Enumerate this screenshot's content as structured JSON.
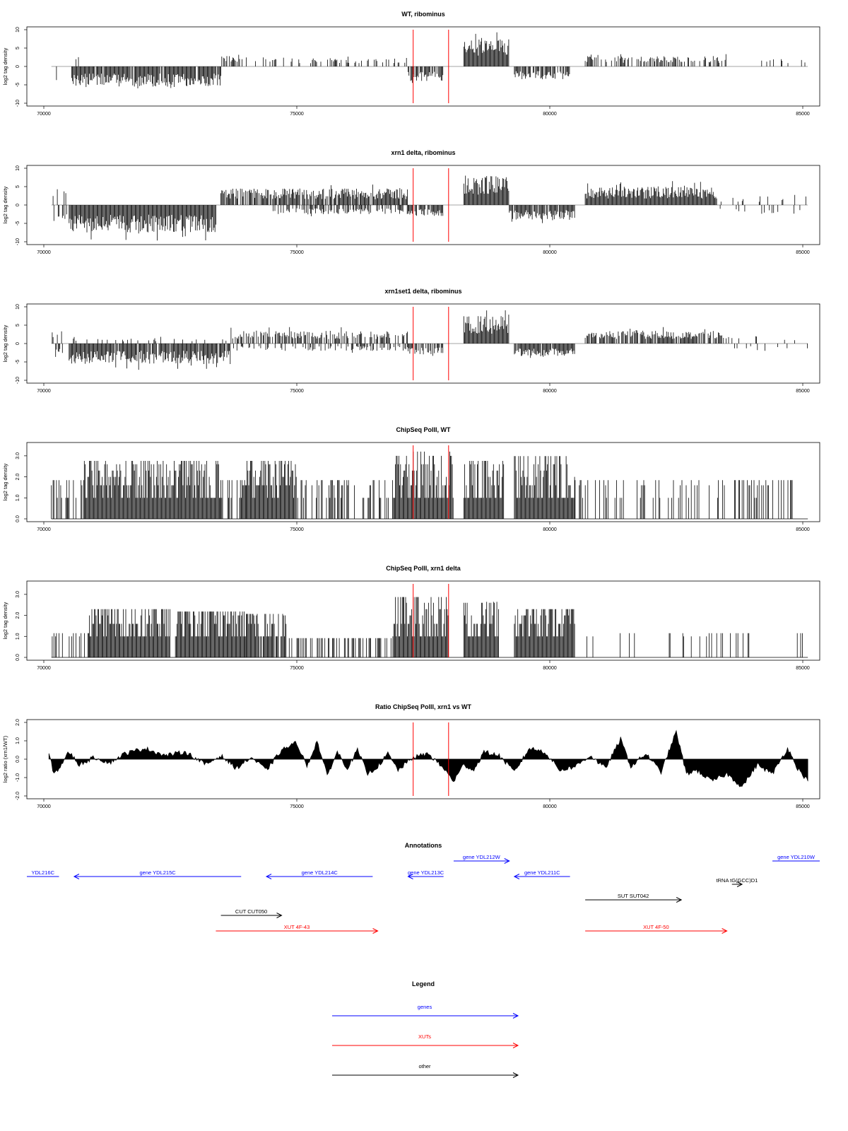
{
  "chart_data": [
    {
      "type": "bar",
      "title": "WT, ribominus",
      "xlabel": "",
      "ylabel": "log2 tag density",
      "xlim": [
        70000,
        85000
      ],
      "ylim": [
        -10,
        10
      ],
      "xticks": [
        70000,
        75000,
        80000,
        85000
      ],
      "yticks": [
        -10,
        -5,
        0,
        5,
        10
      ],
      "markers": [
        77300,
        78000
      ],
      "segments": [
        {
          "start": 70150,
          "end": 70280,
          "strand": "minus",
          "amp": 4,
          "density": 0.3
        },
        {
          "start": 70550,
          "end": 73500,
          "strand": "minus",
          "amp": 5.5,
          "density": 0.95
        },
        {
          "start": 70600,
          "end": 70700,
          "strand": "plus",
          "amp": 3.5,
          "density": 0.2
        },
        {
          "start": 73500,
          "end": 73900,
          "strand": "plus",
          "amp": 3,
          "density": 0.7
        },
        {
          "start": 73900,
          "end": 77200,
          "strand": "plus",
          "amp": 2.5,
          "density": 0.25
        },
        {
          "start": 77200,
          "end": 77900,
          "strand": "minus",
          "amp": 4,
          "density": 0.8
        },
        {
          "start": 78300,
          "end": 79200,
          "strand": "plus",
          "amp": 7.5,
          "density": 1
        },
        {
          "start": 79300,
          "end": 80400,
          "strand": "minus",
          "amp": 3.5,
          "density": 0.8
        },
        {
          "start": 80700,
          "end": 83500,
          "strand": "plus",
          "amp": 2.8,
          "density": 0.5
        },
        {
          "start": 83500,
          "end": 85100,
          "strand": "plus",
          "amp": 2,
          "density": 0.08
        }
      ]
    },
    {
      "type": "bar",
      "title": "xrn1 delta, ribominus",
      "xlabel": "",
      "ylabel": "log2 tag density",
      "xlim": [
        70000,
        85000
      ],
      "ylim": [
        -10,
        10
      ],
      "xticks": [
        70000,
        75000,
        80000,
        85000
      ],
      "yticks": [
        -10,
        -5,
        0,
        5,
        10
      ],
      "markers": [
        77300,
        78000
      ],
      "segments": [
        {
          "start": 70150,
          "end": 70500,
          "strand": "both",
          "amp": 4.5,
          "density": 0.6
        },
        {
          "start": 70500,
          "end": 73400,
          "strand": "minus",
          "amp": 7.5,
          "density": 1
        },
        {
          "start": 73500,
          "end": 77200,
          "strand": "plus",
          "amp": 4.5,
          "density": 0.9
        },
        {
          "start": 74500,
          "end": 77200,
          "strand": "minus",
          "amp": 2.5,
          "density": 0.5
        },
        {
          "start": 77200,
          "end": 77900,
          "strand": "minus",
          "amp": 3,
          "density": 0.8
        },
        {
          "start": 78300,
          "end": 79200,
          "strand": "plus",
          "amp": 8,
          "density": 1
        },
        {
          "start": 79200,
          "end": 80500,
          "strand": "minus",
          "amp": 4,
          "density": 0.9
        },
        {
          "start": 80700,
          "end": 83300,
          "strand": "plus",
          "amp": 5,
          "density": 1
        },
        {
          "start": 83300,
          "end": 85100,
          "strand": "both",
          "amp": 2.5,
          "density": 0.2
        }
      ]
    },
    {
      "type": "bar",
      "title": "xrn1set1 delta, ribominus",
      "xlabel": "",
      "ylabel": "log2 tag density",
      "xlim": [
        70000,
        85000
      ],
      "ylim": [
        -10,
        10
      ],
      "xticks": [
        70000,
        75000,
        80000,
        85000
      ],
      "yticks": [
        -10,
        -5,
        0,
        5,
        10
      ],
      "markers": [
        77300,
        78000
      ],
      "segments": [
        {
          "start": 70150,
          "end": 70400,
          "strand": "both",
          "amp": 4,
          "density": 0.5
        },
        {
          "start": 70500,
          "end": 73700,
          "strand": "minus",
          "amp": 5.5,
          "density": 0.95
        },
        {
          "start": 70500,
          "end": 73700,
          "strand": "plus",
          "amp": 1.5,
          "density": 0.15
        },
        {
          "start": 73700,
          "end": 77200,
          "strand": "plus",
          "amp": 3.5,
          "density": 0.5
        },
        {
          "start": 73700,
          "end": 77200,
          "strand": "minus",
          "amp": 2,
          "density": 0.3
        },
        {
          "start": 77200,
          "end": 77900,
          "strand": "minus",
          "amp": 3,
          "density": 0.8
        },
        {
          "start": 78300,
          "end": 79200,
          "strand": "plus",
          "amp": 7.5,
          "density": 1
        },
        {
          "start": 79300,
          "end": 80500,
          "strand": "minus",
          "amp": 3.5,
          "density": 0.9
        },
        {
          "start": 80700,
          "end": 83400,
          "strand": "plus",
          "amp": 3.5,
          "density": 0.8
        },
        {
          "start": 83400,
          "end": 85100,
          "strand": "both",
          "amp": 2,
          "density": 0.15
        }
      ]
    },
    {
      "type": "bar",
      "title": "ChipSeq PolII, WT",
      "xlabel": "",
      "ylabel": "log2 tag density",
      "xlim": [
        70000,
        85000
      ],
      "ylim": [
        0,
        3.5
      ],
      "xticks": [
        70000,
        75000,
        80000,
        85000
      ],
      "yticks": [
        0.0,
        1.0,
        2.0,
        3.0
      ],
      "markers": [
        77300,
        78000
      ],
      "segments": [
        {
          "start": 70150,
          "end": 70800,
          "strand": "plus",
          "amp": 1.6,
          "density": 0.5
        },
        {
          "start": 70800,
          "end": 72700,
          "strand": "plus",
          "amp": 2.4,
          "density": 1
        },
        {
          "start": 72700,
          "end": 73500,
          "strand": "plus",
          "amp": 2.4,
          "density": 1
        },
        {
          "start": 73500,
          "end": 74000,
          "strand": "plus",
          "amp": 1.6,
          "density": 0.6
        },
        {
          "start": 74000,
          "end": 75000,
          "strand": "plus",
          "amp": 2.4,
          "density": 1
        },
        {
          "start": 75000,
          "end": 76900,
          "strand": "plus",
          "amp": 1.6,
          "density": 0.4
        },
        {
          "start": 76900,
          "end": 78100,
          "strand": "plus",
          "amp": 2.8,
          "density": 1
        },
        {
          "start": 78300,
          "end": 79100,
          "strand": "plus",
          "amp": 2.4,
          "density": 1
        },
        {
          "start": 79300,
          "end": 80500,
          "strand": "plus",
          "amp": 2.6,
          "density": 1
        },
        {
          "start": 80500,
          "end": 85100,
          "strand": "plus",
          "amp": 1.6,
          "density": 0.25
        }
      ]
    },
    {
      "type": "bar",
      "title": "ChipSeq PolII, xrn1 delta",
      "xlabel": "",
      "ylabel": "log2 tag density",
      "xlim": [
        70000,
        85000
      ],
      "ylim": [
        0,
        3.5
      ],
      "xticks": [
        70000,
        75000,
        80000,
        85000
      ],
      "yticks": [
        0.0,
        1.0,
        2.0,
        3.0
      ],
      "markers": [
        77300,
        78000
      ],
      "segments": [
        {
          "start": 70150,
          "end": 70900,
          "strand": "plus",
          "amp": 1,
          "density": 0.4
        },
        {
          "start": 70900,
          "end": 72500,
          "strand": "plus",
          "amp": 2,
          "density": 1
        },
        {
          "start": 72600,
          "end": 74000,
          "strand": "plus",
          "amp": 1.9,
          "density": 1
        },
        {
          "start": 74000,
          "end": 74800,
          "strand": "plus",
          "amp": 1.8,
          "density": 0.9
        },
        {
          "start": 74800,
          "end": 76900,
          "strand": "plus",
          "amp": 0.8,
          "density": 0.35
        },
        {
          "start": 76900,
          "end": 78000,
          "strand": "plus",
          "amp": 2.5,
          "density": 1
        },
        {
          "start": 78300,
          "end": 79000,
          "strand": "plus",
          "amp": 2.3,
          "density": 1
        },
        {
          "start": 79300,
          "end": 80500,
          "strand": "plus",
          "amp": 2,
          "density": 1
        },
        {
          "start": 80500,
          "end": 85100,
          "strand": "plus",
          "amp": 1,
          "density": 0.15
        }
      ]
    },
    {
      "type": "area",
      "title": "Ratio ChipSeq PolII, xrn1 vs WT",
      "xlabel": "",
      "ylabel": "log2 ratio (xrn1/WT)",
      "xlim": [
        70000,
        85000
      ],
      "ylim": [
        -2,
        2
      ],
      "xticks": [
        70000,
        75000,
        80000,
        85000
      ],
      "yticks": [
        -2,
        -1,
        0,
        1,
        2
      ],
      "markers": [
        77300,
        78000
      ],
      "x": [
        70100,
        70200,
        70300,
        70500,
        70700,
        71000,
        71300,
        71600,
        72000,
        72400,
        72800,
        73200,
        73500,
        73800,
        74100,
        74400,
        74700,
        75000,
        75200,
        75400,
        75600,
        75800,
        76000,
        76200,
        76400,
        76600,
        76800,
        77000,
        77300,
        77600,
        77900,
        78100,
        78300,
        78500,
        78700,
        79000,
        79300,
        79600,
        79900,
        80200,
        80500,
        80800,
        81100,
        81400,
        81600,
        81900,
        82200,
        82500,
        82700,
        82900,
        83200,
        83500,
        83800,
        84100,
        84400,
        84700,
        84900,
        85100
      ],
      "values": [
        0.3,
        -0.8,
        -0.5,
        0.4,
        -0.3,
        0.1,
        -0.2,
        0.3,
        0.6,
        0.2,
        0.4,
        -0.3,
        0.2,
        -0.5,
        0.1,
        -0.6,
        0.5,
        0.9,
        -0.4,
        1.0,
        -0.9,
        0.4,
        -0.5,
        0.5,
        -0.8,
        -0.4,
        0.3,
        -0.6,
        0.1,
        0.3,
        -0.5,
        -1.2,
        -0.3,
        -0.6,
        0.4,
        0.2,
        -0.7,
        0.6,
        0.4,
        -0.6,
        -0.4,
        0.2,
        -0.5,
        1.1,
        -0.4,
        0.3,
        -0.7,
        1.5,
        -0.8,
        -0.6,
        -1.2,
        -0.8,
        -1.5,
        -0.3,
        -0.8,
        0.6,
        -0.5,
        -1.2
      ]
    },
    {
      "type": "table",
      "title": "Annotations",
      "xlim": [
        70000,
        85000
      ],
      "features": [
        {
          "label": "YDL216C",
          "start": 69500,
          "end": 70300,
          "strand": "-",
          "color": "#0000ff",
          "row": 0,
          "arrow": false
        },
        {
          "label": "gene YDL215C",
          "start": 70600,
          "end": 73900,
          "strand": "-",
          "color": "#0000ff",
          "row": 0,
          "arrow": true
        },
        {
          "label": "gene YDL214C",
          "start": 74400,
          "end": 76500,
          "strand": "-",
          "color": "#0000ff",
          "row": 0,
          "arrow": true
        },
        {
          "label": "gene YDL213C",
          "start": 77200,
          "end": 77900,
          "strand": "-",
          "color": "#0000ff",
          "row": 0,
          "arrow": true
        },
        {
          "label": "gene YDL212W",
          "start": 78100,
          "end": 79200,
          "strand": "+",
          "color": "#0000ff",
          "row": -1,
          "arrow": true
        },
        {
          "label": "gene YDL211C",
          "start": 79300,
          "end": 80400,
          "strand": "-",
          "color": "#0000ff",
          "row": 0,
          "arrow": true
        },
        {
          "label": "gene YDL210W",
          "start": 84400,
          "end": 85800,
          "strand": "+",
          "color": "#0000ff",
          "row": -1,
          "arrow": false
        },
        {
          "label": "tRNA tG(GCC)D1",
          "start": 83600,
          "end": 83800,
          "strand": "+",
          "color": "#000000",
          "row": 0.5,
          "arrow": true
        },
        {
          "label": "SUT SUT042",
          "start": 80700,
          "end": 82600,
          "strand": "+",
          "color": "#000000",
          "row": 1.5,
          "arrow": true
        },
        {
          "label": "CUT CUT050",
          "start": 73500,
          "end": 74700,
          "strand": "+",
          "color": "#000000",
          "row": 2.5,
          "arrow": true
        },
        {
          "label": "XUT 4F-43",
          "start": 73400,
          "end": 76600,
          "strand": "+",
          "color": "#ff0000",
          "row": 3.5,
          "arrow": true
        },
        {
          "label": "XUT 4F-50",
          "start": 80700,
          "end": 83500,
          "strand": "+",
          "color": "#ff0000",
          "row": 3.5,
          "arrow": true
        }
      ]
    },
    {
      "type": "table",
      "title": "Legend",
      "entries": [
        {
          "label": "genes",
          "color": "#0000ff"
        },
        {
          "label": "XUTs",
          "color": "#ff0000"
        },
        {
          "label": "other",
          "color": "#000000"
        }
      ]
    }
  ]
}
